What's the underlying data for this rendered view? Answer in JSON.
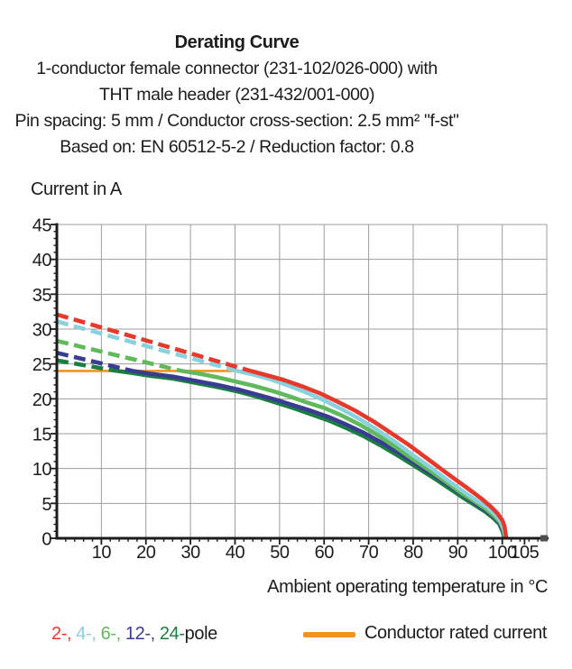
{
  "page": {
    "background": "#ffffff",
    "text_color": "#1c1c1c"
  },
  "title_block": {
    "title": "Derating Curve",
    "lines": [
      "1-conductor female connector (231-102/026-000) with",
      "THT male header (231-432/001-000)",
      "Pin spacing: 5 mm / Conductor cross-section: 2.5 mm² \"f-st\"",
      "Based on: EN 60512-5-2 / Reduction factor: 0.8"
    ]
  },
  "chart_data": {
    "type": "line",
    "title": "Derating Curve",
    "xlabel": "Ambient operating temperature in °C",
    "ylabel": "Current in A",
    "xlim": [
      0,
      110
    ],
    "ylim": [
      0,
      45
    ],
    "x_major_ticks": [
      10,
      20,
      30,
      40,
      50,
      60,
      70,
      80,
      90,
      100,
      105
    ],
    "x_minor_step": 2,
    "y_major_ticks": [
      0,
      5,
      10,
      15,
      20,
      25,
      30,
      35,
      40,
      45
    ],
    "y_minor_step": 1,
    "grid": true,
    "grid_color": "#9d9d9d",
    "axis_color": "#1c1c1c",
    "rated_line": {
      "label": "Conductor rated current",
      "value": 24,
      "x_start": 0,
      "x_end": 43.5,
      "color": "#f29220"
    },
    "series": [
      {
        "name": "2-pole",
        "color": "#e6392c",
        "dashed": [
          [
            0,
            32.1
          ],
          [
            43.5,
            24
          ]
        ],
        "solid": [
          [
            43.5,
            24
          ],
          [
            47,
            23.4
          ],
          [
            51,
            22.7
          ],
          [
            55,
            21.8
          ],
          [
            59,
            20.8
          ],
          [
            63,
            19.6
          ],
          [
            67,
            18.3
          ],
          [
            71,
            16.8
          ],
          [
            75,
            15.1
          ],
          [
            79,
            13.4
          ],
          [
            83,
            11.5
          ],
          [
            87,
            9.6
          ],
          [
            90,
            8.2
          ],
          [
            93,
            6.8
          ],
          [
            95.5,
            5.6
          ],
          [
            97.5,
            4.5
          ],
          [
            99,
            3.5
          ],
          [
            100,
            2.6
          ],
          [
            100.5,
            1.7
          ],
          [
            100.9,
            0
          ]
        ]
      },
      {
        "name": "4-pole",
        "color": "#8ad1de",
        "dashed": [
          [
            0,
            31.1
          ],
          [
            40.5,
            24
          ]
        ],
        "solid": [
          [
            40.5,
            24
          ],
          [
            44,
            23.5
          ],
          [
            48,
            22.8
          ],
          [
            52,
            21.9
          ],
          [
            56,
            20.9
          ],
          [
            60,
            19.8
          ],
          [
            64,
            18.5
          ],
          [
            68,
            17.1
          ],
          [
            72,
            15.5
          ],
          [
            76,
            13.8
          ],
          [
            80,
            11.9
          ],
          [
            84,
            10.1
          ],
          [
            88,
            8.2
          ],
          [
            91,
            6.8
          ],
          [
            94,
            5.5
          ],
          [
            96.5,
            4.5
          ],
          [
            98.3,
            3.5
          ],
          [
            99.6,
            2.5
          ],
          [
            100.3,
            1.5
          ],
          [
            100.8,
            0
          ]
        ]
      },
      {
        "name": "6-pole",
        "color": "#60b95a",
        "dashed": [
          [
            0,
            28.3
          ],
          [
            28,
            24
          ]
        ],
        "solid": [
          [
            28,
            24
          ],
          [
            32,
            23.6
          ],
          [
            36,
            23.1
          ],
          [
            40,
            22.5
          ],
          [
            44,
            21.9
          ],
          [
            48,
            21.2
          ],
          [
            52,
            20.4
          ],
          [
            56,
            19.5
          ],
          [
            60,
            18.7
          ],
          [
            64,
            17.6
          ],
          [
            68,
            16.3
          ],
          [
            72,
            14.8
          ],
          [
            76,
            13.1
          ],
          [
            80,
            11.3
          ],
          [
            84,
            9.6
          ],
          [
            88,
            7.8
          ],
          [
            91,
            6.4
          ],
          [
            94,
            5.2
          ],
          [
            96.3,
            4.2
          ],
          [
            98.2,
            3.2
          ],
          [
            99.5,
            2.3
          ],
          [
            100.2,
            1.3
          ],
          [
            100.7,
            0
          ]
        ]
      },
      {
        "name": "12-pole",
        "color": "#3a3b93",
        "dashed": [
          [
            0,
            26.6
          ],
          [
            17,
            24
          ]
        ],
        "solid": [
          [
            17,
            24
          ],
          [
            21,
            23.6
          ],
          [
            26,
            23.2
          ],
          [
            31,
            22.6
          ],
          [
            36,
            22.0
          ],
          [
            41,
            21.3
          ],
          [
            45,
            20.6
          ],
          [
            49,
            19.9
          ],
          [
            53,
            19.1
          ],
          [
            57,
            18.3
          ],
          [
            61,
            17.4
          ],
          [
            65,
            16.3
          ],
          [
            69,
            15.1
          ],
          [
            73,
            13.7
          ],
          [
            77,
            12.2
          ],
          [
            81,
            10.5
          ],
          [
            85,
            8.9
          ],
          [
            88,
            7.6
          ],
          [
            91,
            6.3
          ],
          [
            94,
            5.0
          ],
          [
            96.3,
            4.0
          ],
          [
            98.1,
            3.1
          ],
          [
            99.4,
            2.2
          ],
          [
            100.1,
            1.2
          ],
          [
            100.6,
            0
          ]
        ]
      },
      {
        "name": "24-pole",
        "color": "#1b7e41",
        "dashed": [
          [
            0,
            25.5
          ],
          [
            13.5,
            24
          ]
        ],
        "solid": [
          [
            13.5,
            24
          ],
          [
            17,
            23.7
          ],
          [
            21,
            23.3
          ],
          [
            26,
            22.9
          ],
          [
            31,
            22.3
          ],
          [
            36,
            21.7
          ],
          [
            41,
            21.0
          ],
          [
            45,
            20.3
          ],
          [
            49,
            19.5
          ],
          [
            53,
            18.7
          ],
          [
            57,
            17.8
          ],
          [
            61,
            16.9
          ],
          [
            65,
            15.8
          ],
          [
            69,
            14.6
          ],
          [
            73,
            13.2
          ],
          [
            77,
            11.7
          ],
          [
            81,
            10.1
          ],
          [
            85,
            8.5
          ],
          [
            88,
            7.2
          ],
          [
            91,
            5.9
          ],
          [
            94,
            4.7
          ],
          [
            96.2,
            3.8
          ],
          [
            98,
            2.9
          ],
          [
            99.3,
            2.1
          ],
          [
            100,
            1.1
          ],
          [
            100.5,
            0
          ]
        ]
      }
    ]
  },
  "legend": {
    "pole_items": [
      {
        "label": "2-,",
        "color": "#e6392c"
      },
      {
        "label": "4-,",
        "color": "#8ad1de"
      },
      {
        "label": "6-,",
        "color": "#60b95a"
      },
      {
        "label": "12-,",
        "color": "#3a3b93"
      },
      {
        "label": "24-",
        "color": "#1b7e41"
      }
    ],
    "pole_suffix": "pole",
    "rated": {
      "label": "Conductor rated current",
      "color": "#f29220"
    }
  }
}
